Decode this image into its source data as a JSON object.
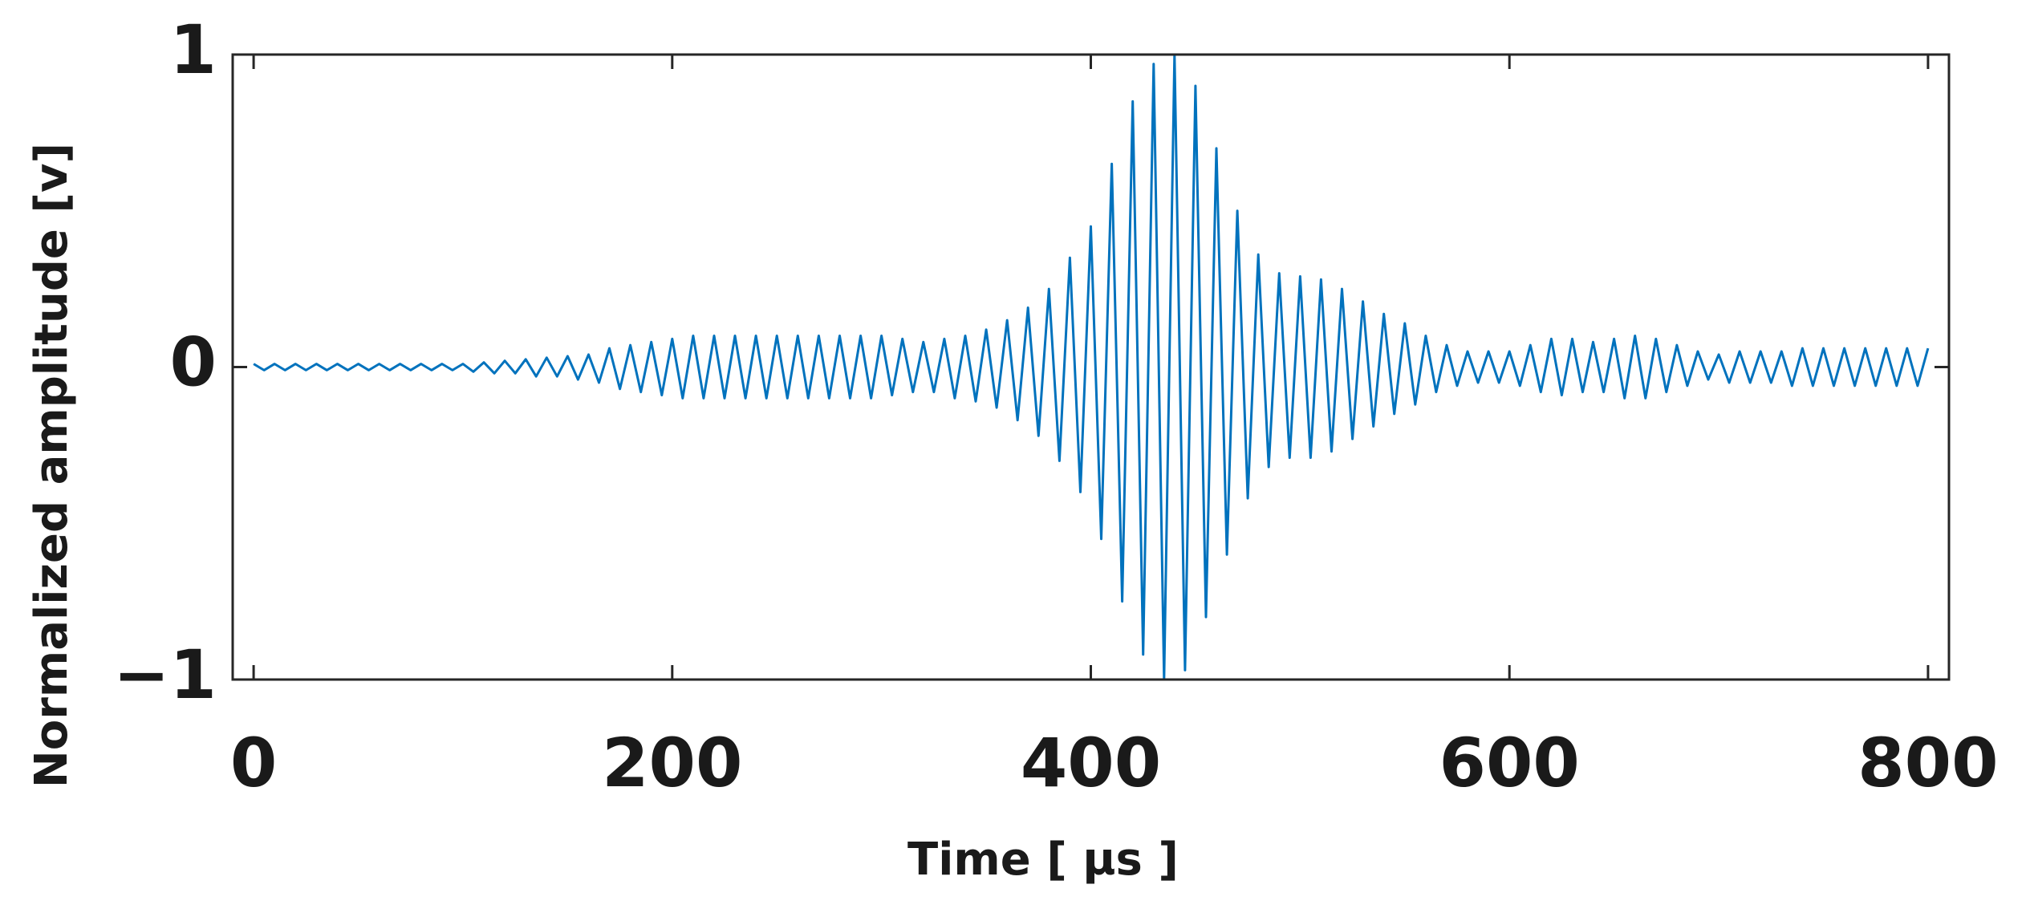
{
  "chart_data": {
    "type": "line",
    "xlabel": "Time  [ µs ]",
    "ylabel": "Normalized amplitude [v]",
    "color": "#0072bd",
    "xlim": [
      -10,
      810
    ],
    "ylim": [
      -1,
      1
    ],
    "xticks": [
      0,
      200,
      400,
      600,
      800
    ],
    "yticks": [
      {
        "value": -1,
        "label": "−1"
      },
      0,
      1
    ],
    "x": [
      0,
      5,
      10,
      15,
      20,
      25,
      30,
      35,
      40,
      45,
      50,
      55,
      60,
      65,
      70,
      75,
      80,
      85,
      90,
      95,
      100,
      105,
      110,
      115,
      120,
      125,
      130,
      135,
      140,
      145,
      150,
      155,
      160,
      165,
      170,
      175,
      180,
      185,
      190,
      195,
      200,
      205,
      210,
      215,
      220,
      225,
      230,
      235,
      240,
      245,
      250,
      255,
      260,
      265,
      270,
      275,
      280,
      285,
      290,
      295,
      300,
      305,
      310,
      315,
      320,
      325,
      330,
      335,
      340,
      345,
      350,
      355,
      360,
      365,
      370,
      375,
      380,
      385,
      390,
      395,
      400,
      405,
      410,
      415,
      420,
      425,
      430,
      435,
      440,
      445,
      450,
      455,
      460,
      465,
      470,
      475,
      480,
      485,
      490,
      495,
      500,
      505,
      510,
      515,
      520,
      525,
      530,
      535,
      540,
      545,
      550,
      555,
      560,
      565,
      570,
      575,
      580,
      585,
      590,
      595,
      600,
      605,
      610,
      615,
      620,
      625,
      630,
      635,
      640,
      645,
      650,
      655,
      660,
      665,
      670,
      675,
      680,
      685,
      690,
      695,
      700,
      705,
      710,
      715,
      720,
      725,
      730,
      735,
      740,
      745,
      750,
      755,
      760,
      765,
      770,
      775,
      780,
      785,
      790,
      795,
      800
    ],
    "values": [
      0.01,
      -0.01,
      0.01,
      -0.01,
      0.01,
      -0.01,
      0.01,
      -0.01,
      0.01,
      -0.01,
      0.01,
      -0.01,
      0.01,
      -0.01,
      0.01,
      -0.01,
      0.01,
      -0.01,
      0.01,
      -0.01,
      0.01,
      -0.015,
      0.015,
      -0.02,
      0.02,
      -0.02,
      0.025,
      -0.03,
      0.03,
      -0.03,
      0.035,
      -0.04,
      0.04,
      -0.05,
      0.06,
      -0.07,
      0.07,
      -0.08,
      0.08,
      -0.09,
      0.09,
      -0.1,
      0.1,
      -0.1,
      0.1,
      -0.1,
      0.1,
      -0.1,
      0.1,
      -0.1,
      0.1,
      -0.1,
      0.1,
      -0.1,
      0.1,
      -0.1,
      0.1,
      -0.1,
      0.1,
      -0.1,
      0.1,
      -0.09,
      0.09,
      -0.08,
      0.08,
      -0.08,
      0.09,
      -0.1,
      0.1,
      -0.11,
      0.12,
      -0.13,
      0.15,
      -0.17,
      0.19,
      -0.22,
      0.25,
      -0.3,
      0.35,
      -0.4,
      0.45,
      -0.55,
      0.65,
      -0.75,
      0.85,
      -0.92,
      0.97,
      -1,
      1,
      -0.97,
      0.9,
      -0.8,
      0.7,
      -0.6,
      0.5,
      -0.42,
      0.36,
      -0.32,
      0.3,
      -0.29,
      0.29,
      -0.29,
      0.28,
      -0.27,
      0.25,
      -0.23,
      0.21,
      -0.19,
      0.17,
      -0.15,
      0.14,
      -0.12,
      0.1,
      -0.08,
      0.07,
      -0.06,
      0.05,
      -0.05,
      0.05,
      -0.05,
      0.05,
      -0.06,
      0.07,
      -0.08,
      0.09,
      -0.09,
      0.09,
      -0.08,
      0.08,
      -0.08,
      0.09,
      -0.1,
      0.1,
      -0.1,
      0.09,
      -0.08,
      0.07,
      -0.06,
      0.05,
      -0.04,
      0.04,
      -0.05,
      0.05,
      -0.05,
      0.05,
      -0.05,
      0.05,
      -0.06,
      0.06,
      -0.06,
      0.06,
      -0.06,
      0.06,
      -0.06,
      0.06,
      -0.06,
      0.06,
      -0.06,
      0.06,
      -0.06,
      0.06
    ]
  }
}
